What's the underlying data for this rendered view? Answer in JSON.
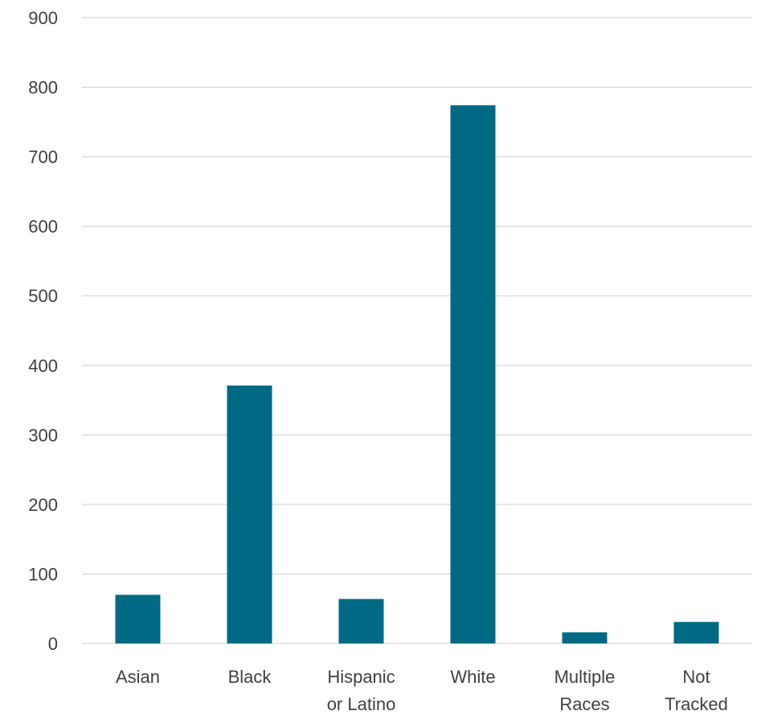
{
  "chart_data": {
    "type": "bar",
    "title": "",
    "xlabel": "",
    "ylabel": "",
    "categories": [
      [
        "Asian"
      ],
      [
        "Black"
      ],
      [
        "Hispanic",
        "or Latino"
      ],
      [
        "White"
      ],
      [
        "Multiple",
        "Races"
      ],
      [
        "Not",
        "Tracked"
      ]
    ],
    "values": [
      70,
      371,
      64,
      774,
      16,
      31
    ],
    "ylim": [
      0,
      900
    ],
    "yticks": [
      "0",
      "100",
      "200",
      "300",
      "400",
      "500",
      "600",
      "700",
      "800",
      "900"
    ],
    "grid": true,
    "legend": "none",
    "colors": {
      "bar": "#006A84",
      "grid": "#D9D9D9",
      "text": "#404040"
    }
  }
}
